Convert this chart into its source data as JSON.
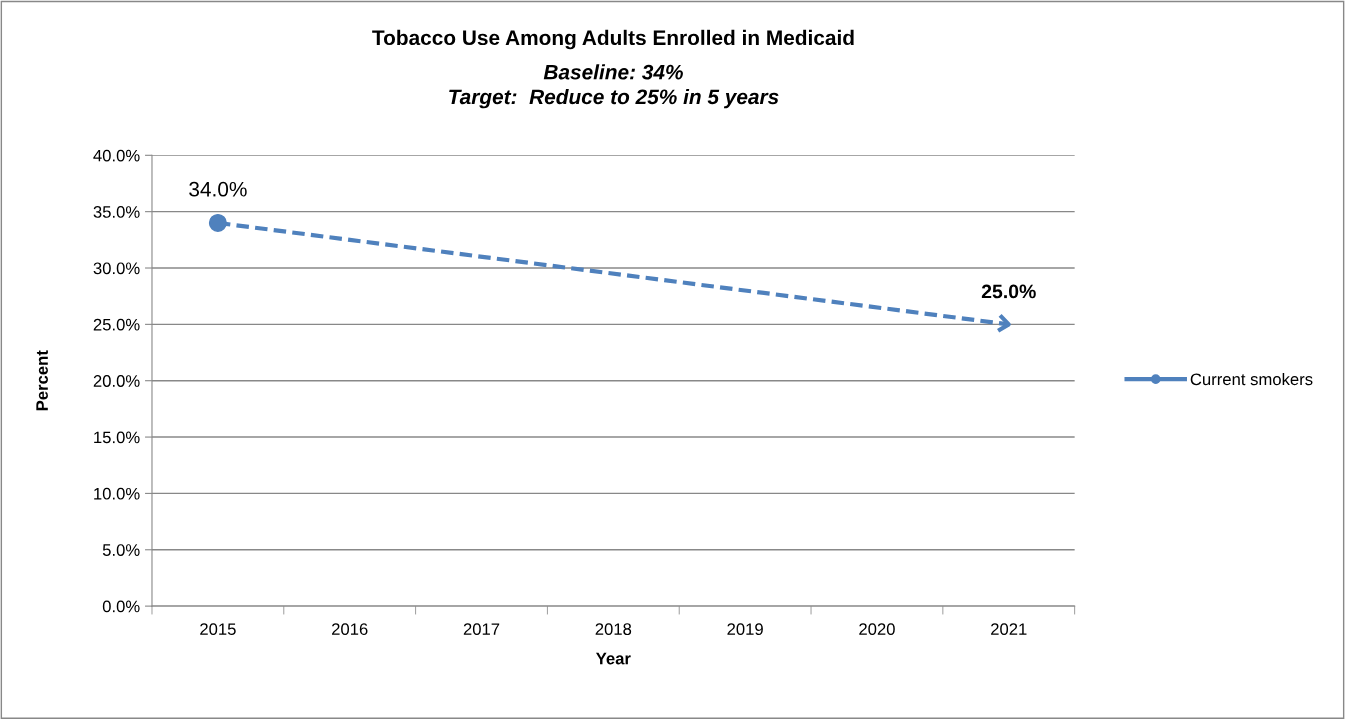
{
  "chart_data": {
    "type": "line",
    "title": "Tobacco Use Among Adults Enrolled in Medicaid",
    "subtitle": "Baseline: 34%\nTarget:  Reduce to 25% in 5 years",
    "xlabel": "Year",
    "ylabel": "Percent",
    "categories": [
      "2015",
      "2016",
      "2017",
      "2018",
      "2019",
      "2020",
      "2021"
    ],
    "series": [
      {
        "name": "Current smokers",
        "color": "#4f81bd",
        "values": [
          34,
          null,
          null,
          null,
          null,
          null,
          25
        ],
        "value_labels": [
          "34.0%",
          null,
          null,
          null,
          null,
          null,
          "25.0%"
        ]
      }
    ],
    "ylim": [
      0,
      40
    ],
    "yticks": [
      {
        "value": 0,
        "label": "0.0%"
      },
      {
        "value": 5,
        "label": "5.0%"
      },
      {
        "value": 10,
        "label": "10.0%"
      },
      {
        "value": 15,
        "label": "15.0%"
      },
      {
        "value": 20,
        "label": "20.0%"
      },
      {
        "value": 25,
        "label": "25.0%"
      },
      {
        "value": 30,
        "label": "30.0%"
      },
      {
        "value": 35,
        "label": "35.0%"
      },
      {
        "value": 40,
        "label": "40.0%"
      }
    ],
    "grid": "y",
    "legend": "right",
    "marker": "circle",
    "line_style": "dashed"
  }
}
